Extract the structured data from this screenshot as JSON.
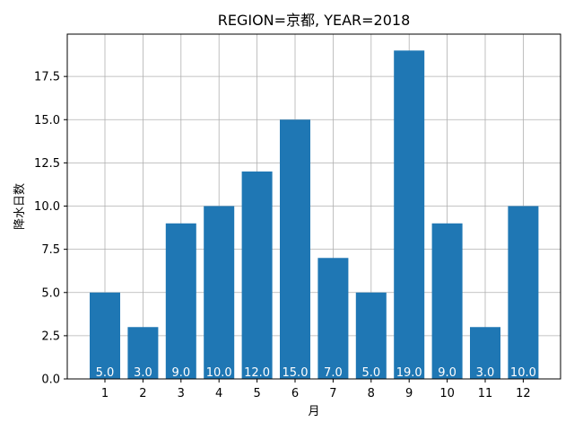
{
  "chart_data": {
    "type": "bar",
    "title": "REGION=京都, YEAR=2018",
    "xlabel": "月",
    "ylabel": "降水日数",
    "categories": [
      "1",
      "2",
      "3",
      "4",
      "5",
      "6",
      "7",
      "8",
      "9",
      "10",
      "11",
      "12"
    ],
    "values": [
      5,
      3,
      9,
      10,
      12,
      15,
      7,
      5,
      19,
      9,
      3,
      10
    ],
    "data_labels": [
      "5.0",
      "3.0",
      "9.0",
      "10.0",
      "12.0",
      "15.0",
      "7.0",
      "5.0",
      "19.0",
      "9.0",
      "3.0",
      "10.0"
    ],
    "ylim": [
      0,
      19.95
    ],
    "yticks": [
      "0.0",
      "2.5",
      "5.0",
      "7.5",
      "10.0",
      "12.5",
      "15.0",
      "17.5"
    ],
    "grid": true,
    "legend": "none",
    "colors": {
      "bar": "#1f77b4",
      "grid": "#b0b0b0",
      "label": "#ffffff"
    }
  }
}
